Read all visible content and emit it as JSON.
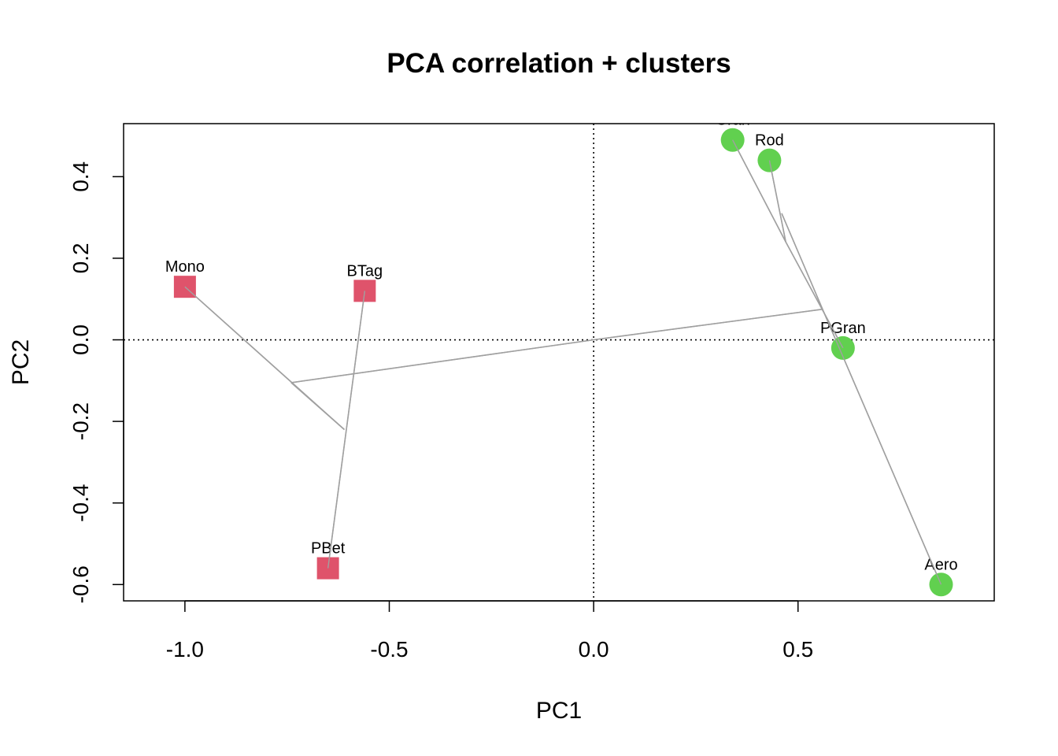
{
  "chart_data": {
    "type": "scatter",
    "title": "PCA correlation + clusters",
    "xlabel": "PC1",
    "ylabel": "PC2",
    "xlim": [
      -1.15,
      0.98
    ],
    "ylim": [
      -0.64,
      0.53
    ],
    "xticks": [
      -1.0,
      -0.5,
      0.0,
      0.5
    ],
    "xtick_labels": [
      "-1.0",
      "-0.5",
      "0.0",
      "0.5"
    ],
    "yticks": [
      -0.6,
      -0.4,
      -0.2,
      0.0,
      0.2,
      0.4
    ],
    "ytick_labels": [
      "-0.6",
      "-0.4",
      "-0.2",
      "0.0",
      "0.2",
      "0.4"
    ],
    "reference_lines": {
      "x": 0,
      "y": 0,
      "style": "dotted"
    },
    "grid": false,
    "clusters": [
      {
        "id": 1,
        "shape": "square",
        "color": "#DF536B"
      },
      {
        "id": 2,
        "shape": "circle",
        "color": "#61D04F"
      }
    ],
    "points": [
      {
        "label": "Mono",
        "x": -1.0,
        "y": 0.13,
        "cluster": 1
      },
      {
        "label": "BTag",
        "x": -0.56,
        "y": 0.12,
        "cluster": 1
      },
      {
        "label": "PBet",
        "x": -0.65,
        "y": -0.56,
        "cluster": 1
      },
      {
        "label": "Gran",
        "x": 0.34,
        "y": 0.49,
        "cluster": 2
      },
      {
        "label": "Rod",
        "x": 0.43,
        "y": 0.44,
        "cluster": 2
      },
      {
        "label": "PGran",
        "x": 0.61,
        "y": -0.02,
        "cluster": 2
      },
      {
        "label": "Aero",
        "x": 0.85,
        "y": -0.6,
        "cluster": 2
      }
    ],
    "dendrogram_segments": [
      {
        "from": [
          -1.0,
          0.13
        ],
        "to": [
          -0.61,
          -0.22
        ]
      },
      {
        "from": [
          -0.56,
          0.12
        ],
        "to": [
          -0.65,
          -0.56
        ]
      },
      {
        "from": [
          -0.61,
          -0.22
        ],
        "to": [
          -0.74,
          -0.105
        ]
      },
      {
        "from": [
          -0.74,
          -0.105
        ],
        "to": [
          0.0,
          0.0
        ]
      },
      {
        "from": [
          0.0,
          0.0
        ],
        "to": [
          0.56,
          0.075
        ]
      },
      {
        "from": [
          0.34,
          0.49
        ],
        "to": [
          0.47,
          0.24
        ]
      },
      {
        "from": [
          0.43,
          0.44
        ],
        "to": [
          0.47,
          0.24
        ]
      },
      {
        "from": [
          0.46,
          0.31
        ],
        "to": [
          0.56,
          0.075
        ]
      },
      {
        "from": [
          0.47,
          0.24
        ],
        "to": [
          0.61,
          -0.02
        ]
      },
      {
        "from": [
          0.56,
          0.075
        ],
        "to": [
          0.85,
          -0.6
        ]
      }
    ],
    "dendrogram_color": "#A0A0A0"
  }
}
